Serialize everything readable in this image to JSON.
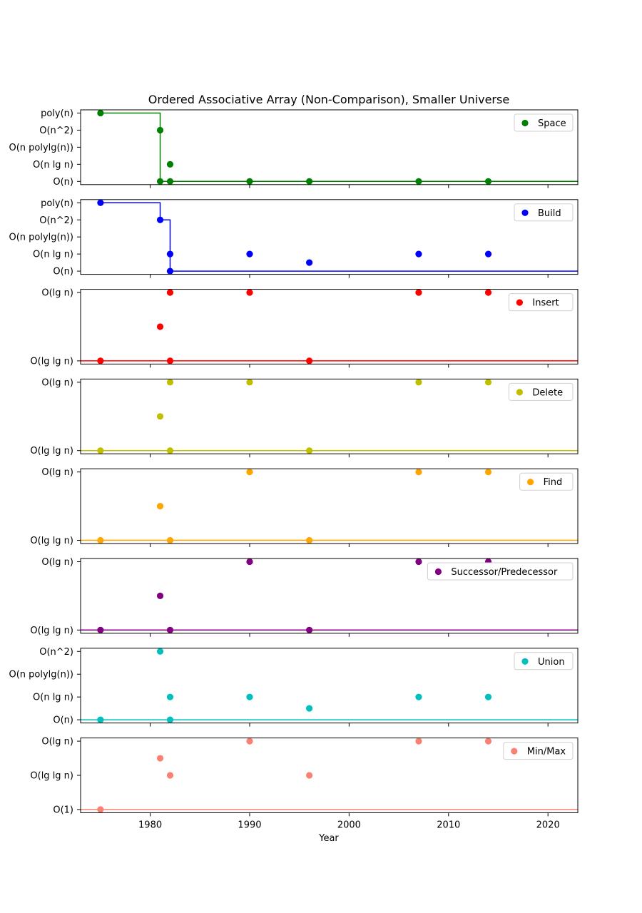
{
  "chart_data": {
    "type": "scatter",
    "title": "Ordered Associative Array (Non-Comparison), Smaller Universe",
    "xlabel": "Year",
    "xlim": [
      1973,
      2023
    ],
    "xticks": [
      1980,
      1990,
      2000,
      2010,
      2020
    ],
    "xtick_labels": [
      "1980",
      "1990",
      "2000",
      "2010",
      "2020"
    ],
    "panels": [
      {
        "name": "Space",
        "color": "#008000",
        "y_levels": [
          "O(n)",
          "O(n lg n)",
          "O(n polylg(n))",
          "O(n^2)",
          "poly(n)"
        ],
        "points": [
          [
            1975,
            4
          ],
          [
            1981,
            3
          ],
          [
            1981,
            0
          ],
          [
            1982,
            1
          ],
          [
            1982,
            0
          ],
          [
            1990,
            0
          ],
          [
            1996,
            0
          ],
          [
            2007,
            0
          ],
          [
            2014,
            0
          ]
        ],
        "frontier": [
          [
            1975,
            4
          ],
          [
            1981,
            0
          ],
          [
            2023,
            0
          ]
        ],
        "legend_pos": "upper-right"
      },
      {
        "name": "Build",
        "color": "#0000ff",
        "y_levels": [
          "O(n)",
          "O(n lg n)",
          "O(n polylg(n))",
          "O(n^2)",
          "poly(n)"
        ],
        "points": [
          [
            1975,
            4
          ],
          [
            1981,
            3
          ],
          [
            1982,
            1
          ],
          [
            1982,
            0
          ],
          [
            1990,
            1
          ],
          [
            1996,
            0.5
          ],
          [
            2007,
            1
          ],
          [
            2014,
            1
          ]
        ],
        "frontier": [
          [
            1975,
            4
          ],
          [
            1981,
            3
          ],
          [
            1982,
            0
          ],
          [
            2023,
            0
          ]
        ],
        "legend_pos": "upper-right"
      },
      {
        "name": "Insert",
        "color": "#ff0000",
        "y_levels": [
          "O(lg lg n)",
          "O(lg n)"
        ],
        "points": [
          [
            1975,
            0
          ],
          [
            1981,
            0.5
          ],
          [
            1982,
            1
          ],
          [
            1982,
            0
          ],
          [
            1990,
            1
          ],
          [
            1996,
            0
          ],
          [
            2007,
            1
          ],
          [
            2014,
            1
          ]
        ],
        "frontier": [
          [
            1973,
            0
          ],
          [
            2023,
            0
          ]
        ],
        "legend_pos": "upper-right"
      },
      {
        "name": "Delete",
        "color": "#bfbf00",
        "y_levels": [
          "O(lg lg n)",
          "O(lg n)"
        ],
        "points": [
          [
            1975,
            0
          ],
          [
            1981,
            0.5
          ],
          [
            1982,
            1
          ],
          [
            1982,
            0
          ],
          [
            1990,
            1
          ],
          [
            1996,
            0
          ],
          [
            2007,
            1
          ],
          [
            2014,
            1
          ]
        ],
        "frontier": [
          [
            1973,
            0
          ],
          [
            2023,
            0
          ]
        ],
        "legend_pos": "upper-right"
      },
      {
        "name": "Find",
        "color": "#ffa500",
        "y_levels": [
          "O(lg lg n)",
          "O(lg n)"
        ],
        "points": [
          [
            1975,
            0
          ],
          [
            1981,
            0.5
          ],
          [
            1982,
            0
          ],
          [
            1990,
            1
          ],
          [
            1996,
            0
          ],
          [
            2007,
            1
          ],
          [
            2014,
            1
          ]
        ],
        "frontier": [
          [
            1973,
            0
          ],
          [
            2023,
            0
          ]
        ],
        "legend_pos": "upper-right"
      },
      {
        "name": "Successor/Predecessor",
        "color": "#800080",
        "y_levels": [
          "O(lg lg n)",
          "O(lg n)"
        ],
        "points": [
          [
            1975,
            0
          ],
          [
            1981,
            0.5
          ],
          [
            1982,
            0
          ],
          [
            1990,
            1
          ],
          [
            1996,
            0
          ],
          [
            2007,
            1
          ],
          [
            2014,
            1
          ]
        ],
        "frontier": [
          [
            1973,
            0
          ],
          [
            2023,
            0
          ]
        ],
        "legend_pos": "upper-right"
      },
      {
        "name": "Union",
        "color": "#00bfbf",
        "y_levels": [
          "O(n)",
          "O(n lg n)",
          "O(n polylg(n))",
          "O(n^2)"
        ],
        "points": [
          [
            1975,
            0
          ],
          [
            1981,
            3
          ],
          [
            1982,
            1
          ],
          [
            1982,
            0
          ],
          [
            1990,
            1
          ],
          [
            1996,
            0.5
          ],
          [
            2007,
            1
          ],
          [
            2014,
            1
          ]
        ],
        "frontier": [
          [
            1973,
            0
          ],
          [
            2023,
            0
          ]
        ],
        "legend_pos": "upper-right"
      },
      {
        "name": "Min/Max",
        "color": "#fa8072",
        "y_levels": [
          "O(1)",
          "O(lg lg n)",
          "O(lg n)"
        ],
        "points": [
          [
            1975,
            0
          ],
          [
            1981,
            1.5
          ],
          [
            1982,
            1
          ],
          [
            1990,
            2
          ],
          [
            1996,
            1
          ],
          [
            2007,
            2
          ],
          [
            2014,
            2
          ]
        ],
        "frontier": [
          [
            1973,
            0
          ],
          [
            2023,
            0
          ]
        ],
        "legend_pos": "upper-right"
      }
    ]
  }
}
